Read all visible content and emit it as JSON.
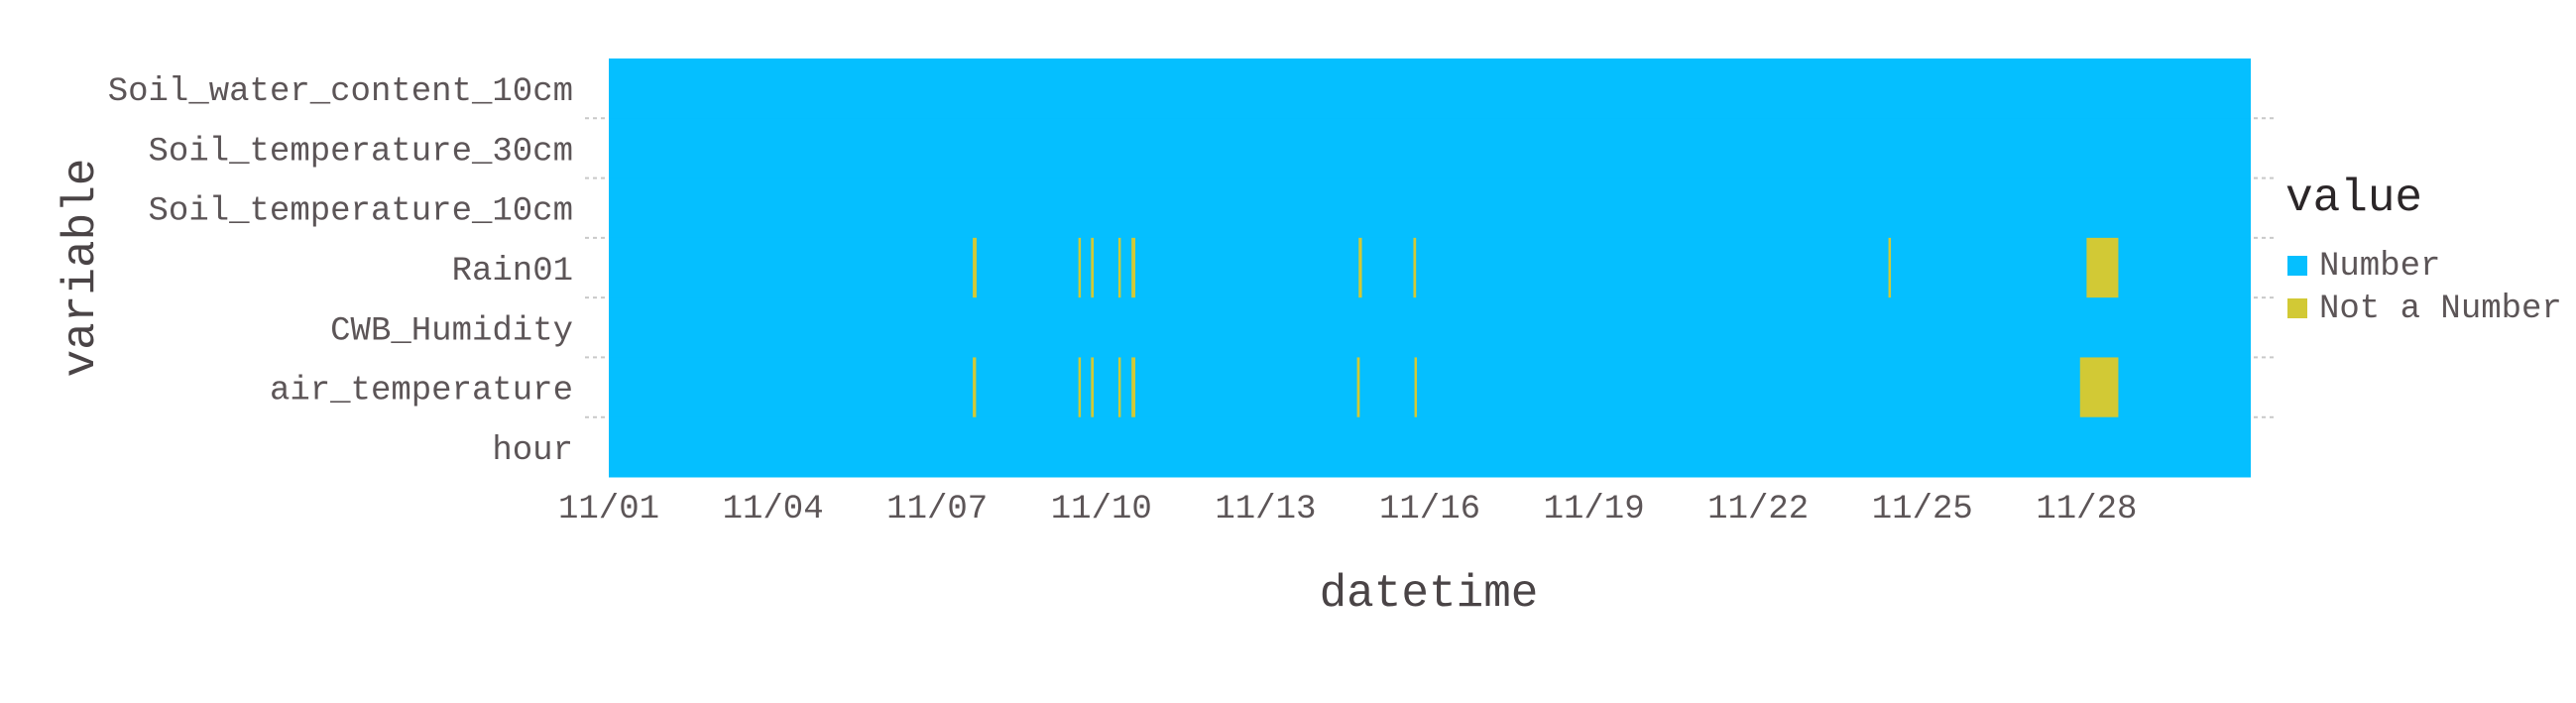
{
  "chart_data": {
    "type": "heatmap",
    "title": "",
    "xlabel": "datetime",
    "ylabel": "variable",
    "variables": [
      "Soil_water_content_10cm",
      "Soil_temperature_30cm",
      "Soil_temperature_10cm",
      "Rain01",
      "CWB_Humidity",
      "air_temperature",
      "hour"
    ],
    "x_range_days": [
      0,
      30
    ],
    "x_ticks": [
      {
        "day": 0,
        "label": "11/01"
      },
      {
        "day": 3,
        "label": "11/04"
      },
      {
        "day": 6,
        "label": "11/07"
      },
      {
        "day": 9,
        "label": "11/10"
      },
      {
        "day": 12,
        "label": "11/13"
      },
      {
        "day": 15,
        "label": "11/16"
      },
      {
        "day": 18,
        "label": "11/19"
      },
      {
        "day": 21,
        "label": "11/22"
      },
      {
        "day": 24,
        "label": "11/25"
      },
      {
        "day": 27,
        "label": "11/28"
      }
    ],
    "legend": {
      "title": "value",
      "placement": "right",
      "items": [
        {
          "label": "Number",
          "color": "#05bfff"
        },
        {
          "label": "Not a Number",
          "color": "#d2c935"
        }
      ]
    },
    "default_value": "Number",
    "missing_segments": [
      {
        "variable": "Rain01",
        "start_day": 6.65,
        "end_day": 6.72
      },
      {
        "variable": "Rain01",
        "start_day": 8.58,
        "end_day": 8.62
      },
      {
        "variable": "Rain01",
        "start_day": 8.81,
        "end_day": 8.86
      },
      {
        "variable": "Rain01",
        "start_day": 9.31,
        "end_day": 9.35
      },
      {
        "variable": "Rain01",
        "start_day": 9.55,
        "end_day": 9.62
      },
      {
        "variable": "Rain01",
        "start_day": 13.7,
        "end_day": 13.76
      },
      {
        "variable": "Rain01",
        "start_day": 14.7,
        "end_day": 14.75
      },
      {
        "variable": "Rain01",
        "start_day": 23.38,
        "end_day": 23.42
      },
      {
        "variable": "Rain01",
        "start_day": 27.0,
        "end_day": 27.58
      },
      {
        "variable": "air_temperature",
        "start_day": 6.65,
        "end_day": 6.71
      },
      {
        "variable": "air_temperature",
        "start_day": 8.58,
        "end_day": 8.62
      },
      {
        "variable": "air_temperature",
        "start_day": 8.81,
        "end_day": 8.86
      },
      {
        "variable": "air_temperature",
        "start_day": 9.31,
        "end_day": 9.35
      },
      {
        "variable": "air_temperature",
        "start_day": 9.55,
        "end_day": 9.62
      },
      {
        "variable": "air_temperature",
        "start_day": 13.67,
        "end_day": 13.72
      },
      {
        "variable": "air_temperature",
        "start_day": 14.72,
        "end_day": 14.76
      },
      {
        "variable": "air_temperature",
        "start_day": 26.88,
        "end_day": 27.58
      }
    ]
  }
}
